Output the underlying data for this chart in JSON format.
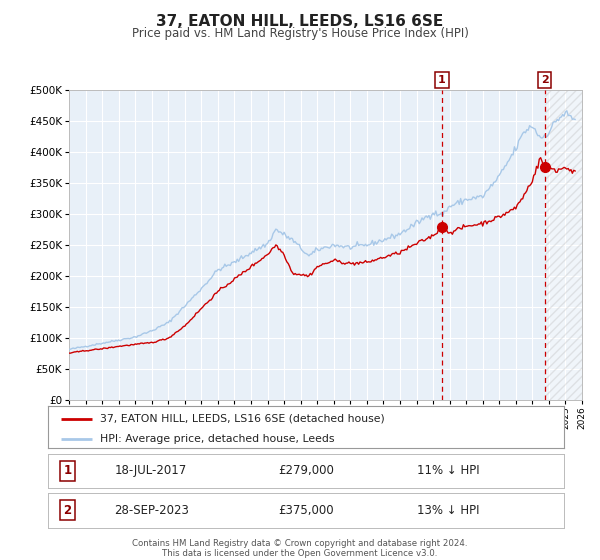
{
  "title": "37, EATON HILL, LEEDS, LS16 6SE",
  "subtitle": "Price paid vs. HM Land Registry's House Price Index (HPI)",
  "hpi_color": "#a8c8e8",
  "price_color": "#cc0000",
  "plot_bg": "#e8f0f8",
  "marker1_x": 2017.542,
  "marker1_price": 279000,
  "marker1_label": "18-JUL-2017",
  "marker1_pct": "11% ↓ HPI",
  "marker2_x": 2023.75,
  "marker2_price": 375000,
  "marker2_label": "28-SEP-2023",
  "marker2_pct": "13% ↓ HPI",
  "legend_label1": "37, EATON HILL, LEEDS, LS16 6SE (detached house)",
  "legend_label2": "HPI: Average price, detached house, Leeds",
  "footer1": "Contains HM Land Registry data © Crown copyright and database right 2024.",
  "footer2": "This data is licensed under the Open Government Licence v3.0.",
  "xmin": 1995.0,
  "xmax": 2026.0,
  "ymin": 0,
  "ymax": 500000,
  "yticks": [
    0,
    50000,
    100000,
    150000,
    200000,
    250000,
    300000,
    350000,
    400000,
    450000,
    500000
  ]
}
